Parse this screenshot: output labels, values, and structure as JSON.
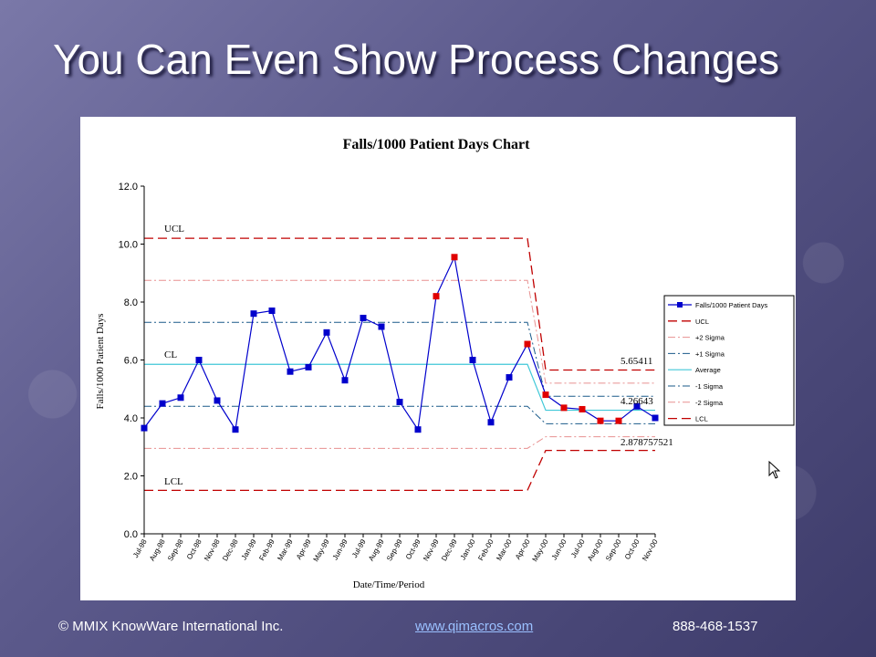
{
  "slide": {
    "title": "You Can Even Show Process Changes"
  },
  "footer": {
    "copyright": "© MMIX KnowWare International Inc.",
    "link": "www.qimacros.com",
    "phone": "888-468-1537"
  },
  "colors": {
    "data_line": "#0000cc",
    "out_of_control_point": "#e00000",
    "limit_line": "#c00000",
    "two_sigma_line": "#e89090",
    "one_sigma_line": "#1a5a8a",
    "average_line": "#40c8d8"
  },
  "chart_data": {
    "type": "line",
    "title": "Falls/1000 Patient Days Chart",
    "xlabel": "Date/Time/Period",
    "ylabel": "Falls/1000 Patient Days",
    "ylim": [
      0,
      12
    ],
    "yticks": [
      "0.0",
      "2.0",
      "4.0",
      "6.0",
      "8.0",
      "10.0",
      "12.0"
    ],
    "grid": false,
    "legend_position": "right",
    "categories": [
      "Jul-98",
      "Aug-98",
      "Sep-98",
      "Oct-98",
      "Nov-98",
      "Dec-98",
      "Jan-99",
      "Feb-99",
      "Mar-99",
      "Apr-99",
      "May-99",
      "Jun-99",
      "Jul-99",
      "Aug-99",
      "Sep-99",
      "Oct-99",
      "Nov-99",
      "Dec-99",
      "Jan-00",
      "Feb-00",
      "Mar-00",
      "Apr-00",
      "May-00",
      "Jun-00",
      "Jul-00",
      "Aug-00",
      "Sep-00",
      "Oct-00",
      "Nov-00"
    ],
    "series": [
      {
        "name": "Falls/1000 Patient Days",
        "values": [
          3.65,
          4.5,
          4.7,
          6.0,
          4.6,
          3.6,
          7.6,
          7.7,
          5.6,
          5.75,
          6.95,
          5.3,
          7.45,
          7.15,
          4.55,
          3.6,
          8.2,
          9.55,
          6.0,
          3.85,
          5.4,
          6.55,
          4.8,
          4.35,
          4.3,
          3.9,
          3.9,
          4.4,
          4.0
        ],
        "flagged_indices": [
          16,
          17,
          21,
          22,
          23,
          24,
          25,
          26
        ]
      },
      {
        "name": "UCL",
        "segments": [
          {
            "from": 0,
            "to": 21,
            "value": 10.2
          },
          {
            "from": 22,
            "to": 28,
            "value": 5.65411
          }
        ]
      },
      {
        "name": "+2 Sigma",
        "segments": [
          {
            "from": 0,
            "to": 21,
            "value": 8.75
          },
          {
            "from": 22,
            "to": 28,
            "value": 5.2
          }
        ]
      },
      {
        "name": "+1 Sigma",
        "segments": [
          {
            "from": 0,
            "to": 21,
            "value": 7.3
          },
          {
            "from": 22,
            "to": 28,
            "value": 4.75
          }
        ]
      },
      {
        "name": "Average",
        "segments": [
          {
            "from": 0,
            "to": 21,
            "value": 5.85
          },
          {
            "from": 22,
            "to": 28,
            "value": 4.26643
          }
        ]
      },
      {
        "name": "-1 Sigma",
        "segments": [
          {
            "from": 0,
            "to": 21,
            "value": 4.4
          },
          {
            "from": 22,
            "to": 28,
            "value": 3.8
          }
        ]
      },
      {
        "name": "-2 Sigma",
        "segments": [
          {
            "from": 0,
            "to": 21,
            "value": 2.95
          },
          {
            "from": 22,
            "to": 28,
            "value": 3.35
          }
        ]
      },
      {
        "name": "LCL",
        "segments": [
          {
            "from": 0,
            "to": 21,
            "value": 1.5
          },
          {
            "from": 22,
            "to": 28,
            "value": 2.878757521
          }
        ]
      }
    ],
    "annotations": {
      "ucl_label": "UCL",
      "cl_label": "CL",
      "lcl_label": "LCL",
      "ucl_value": "5.65411",
      "cl_value": "4.26643",
      "lcl_value": "2.878757521"
    }
  }
}
